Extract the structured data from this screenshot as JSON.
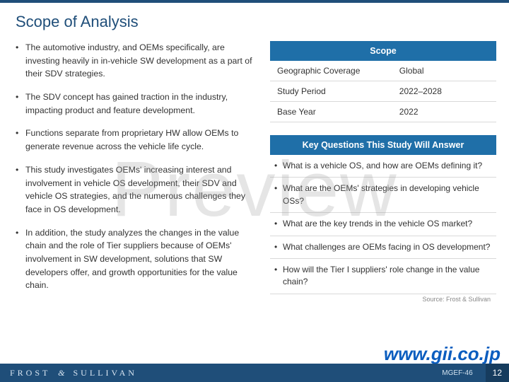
{
  "title": "Scope of Analysis",
  "left_bullets": [
    "The automotive industry, and OEMs specifically, are investing heavily in in-vehicle SW development as a part of their SDV strategies.",
    "The SDV concept has gained traction in the industry, impacting product and feature development.",
    "Functions separate from proprietary HW allow OEMs to generate revenue across the vehicle life cycle.",
    "This study investigates OEMs' increasing interest and involvement in vehicle OS development, their SDV and vehicle OS strategies, and the numerous challenges they face in OS development.",
    "In addition, the study analyzes the changes in the value chain and the role of Tier suppliers because of OEMs' involvement in SW development, solutions that SW developers offer, and growth opportunities for the value chain."
  ],
  "scope": {
    "header": "Scope",
    "rows": [
      {
        "label": "Geographic Coverage",
        "value": "Global"
      },
      {
        "label": "Study Period",
        "value": "2022–2028"
      },
      {
        "label": "Base Year",
        "value": "2022"
      }
    ]
  },
  "kq": {
    "header": "Key Questions This Study Will Answer",
    "items": [
      "What is a vehicle OS, and how are OEMs defining it?",
      "What are the OEMs' strategies in developing vehicle OSs?",
      "What are the key trends in the vehicle OS market?",
      "What challenges are OEMs facing in OS development?",
      "How will the Tier I suppliers' role change in the value chain?"
    ]
  },
  "source_note": "Source: Frost & Sullivan",
  "watermark": "Preview",
  "url_mark": "www.gii.co.jp",
  "footer": {
    "brand_left": "FROST",
    "brand_amp": "&",
    "brand_right": "SULLIVAN",
    "doc_code": "MGEF-46",
    "page_number": "12"
  },
  "colors": {
    "brand_blue": "#1f4e79",
    "panel_blue": "#1f6fa8",
    "text": "#333333",
    "border": "#d9d9d9",
    "url_blue": "#0b5dbf"
  }
}
